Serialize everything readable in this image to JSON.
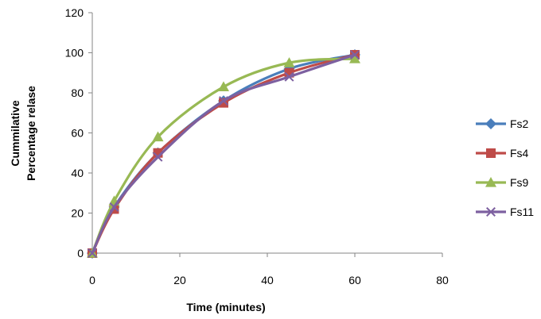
{
  "chart_data": {
    "type": "line",
    "smooth": true,
    "x": [
      0,
      5,
      15,
      30,
      45,
      60
    ],
    "series": [
      {
        "name": "Fs2",
        "values": [
          0,
          23,
          50,
          76,
          92,
          99
        ],
        "color": "#4A7EBB",
        "marker": "diamond"
      },
      {
        "name": "Fs4",
        "values": [
          0,
          22,
          50,
          75,
          90,
          99
        ],
        "color": "#BE4B48",
        "marker": "square"
      },
      {
        "name": "Fs9",
        "values": [
          0,
          26,
          58,
          83,
          95,
          97
        ],
        "color": "#98B954",
        "marker": "triangle"
      },
      {
        "name": "Fs11",
        "values": [
          0,
          23,
          48,
          76,
          88,
          99
        ],
        "color": "#7D60A0",
        "marker": "x"
      }
    ],
    "xlabel": "Time (minutes)",
    "ylabel_lines": [
      "Cummilative",
      "Percentage relase"
    ],
    "xlim": [
      0,
      80
    ],
    "ylim": [
      0,
      120
    ],
    "xticks": [
      "0",
      "20",
      "40",
      "60",
      "80"
    ],
    "yticks": [
      "0",
      "20",
      "40",
      "60",
      "80",
      "100",
      "120"
    ],
    "grid": false,
    "legend_position": "right"
  }
}
